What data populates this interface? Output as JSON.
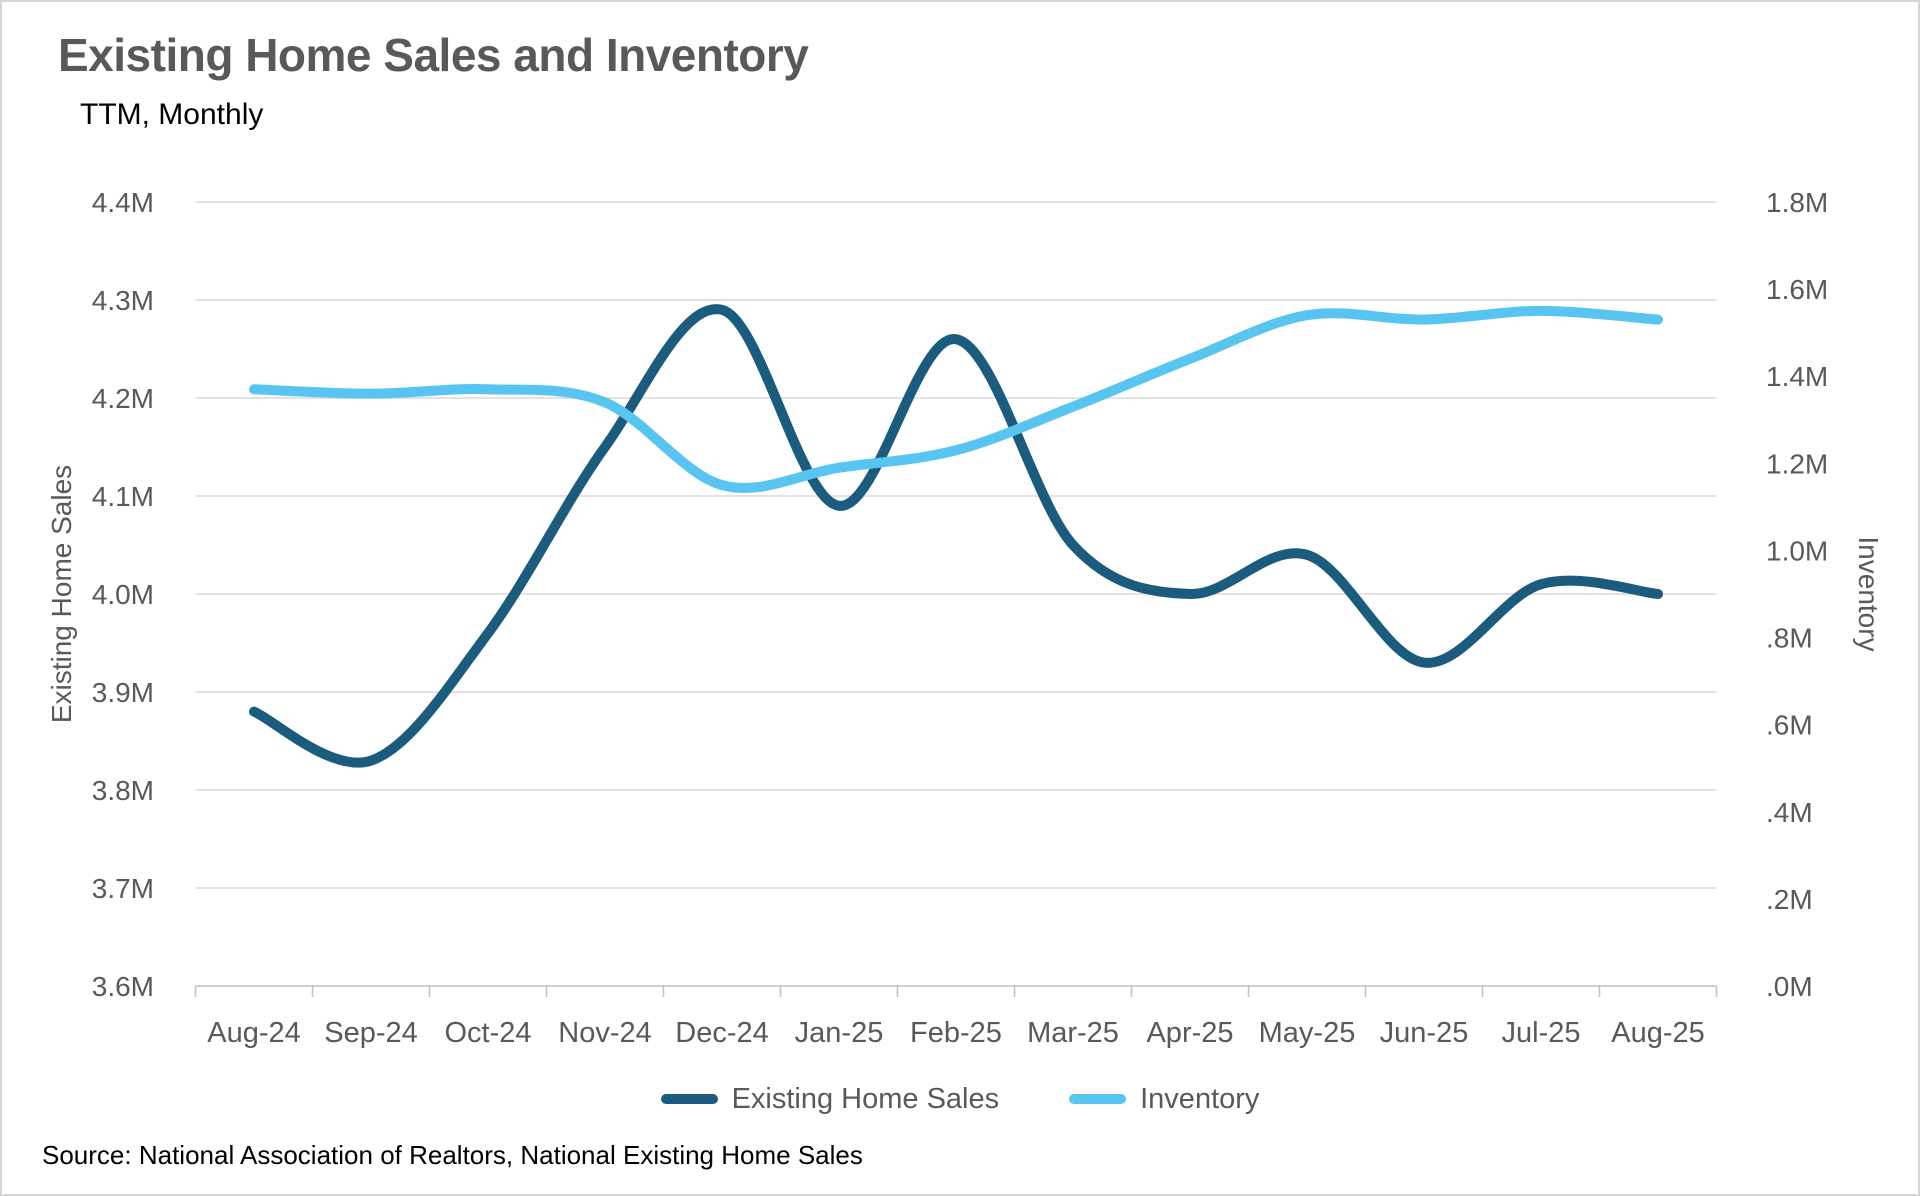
{
  "header": {
    "title": "Existing Home Sales and Inventory",
    "subtitle": "TTM, Monthly"
  },
  "source_note": "Source: National Association of Realtors, National Existing Home Sales",
  "colors": {
    "sales_line": "#1B5B7E",
    "inventory_line": "#58C5F0",
    "gridline": "#D9D9D9",
    "axis_line": "#BFBFBF",
    "tick_text": "#595959",
    "title_text": "#595959",
    "body_text": "#000000",
    "background": "#FFFFFF"
  },
  "chart_data": {
    "type": "line",
    "categories": [
      "Aug-24",
      "Sep-24",
      "Oct-24",
      "Nov-24",
      "Dec-24",
      "Jan-25",
      "Feb-25",
      "Mar-25",
      "Apr-25",
      "May-25",
      "Jun-25",
      "Jul-25",
      "Aug-25"
    ],
    "series": [
      {
        "name": "Existing Home Sales",
        "axis": "left",
        "color": "#1B5B7E",
        "values": [
          3.88,
          3.83,
          3.96,
          4.15,
          4.29,
          4.09,
          4.26,
          4.05,
          4.0,
          4.04,
          3.93,
          4.01,
          4.0
        ]
      },
      {
        "name": "Inventory",
        "axis": "right",
        "color": "#58C5F0",
        "values": [
          1.37,
          1.36,
          1.37,
          1.34,
          1.15,
          1.19,
          1.23,
          1.33,
          1.44,
          1.54,
          1.53,
          1.55,
          1.53
        ]
      }
    ],
    "left_axis": {
      "title": "Existing Home Sales",
      "min": 3.6,
      "max": 4.4,
      "tick_labels": [
        "4.4M",
        "4.3M",
        "4.2M",
        "4.1M",
        "4.0M",
        "3.9M",
        "3.8M",
        "3.7M",
        "3.6M"
      ]
    },
    "right_axis": {
      "title": "Inventory",
      "min": 0.0,
      "max": 1.8,
      "tick_labels": [
        "1.8M",
        "1.6M",
        "1.4M",
        "1.2M",
        "1.0M",
        ".8M",
        ".6M",
        ".4M",
        ".2M",
        ".0M"
      ]
    },
    "grid": "horizontal",
    "legend_position": "bottom",
    "line_style": "smooth"
  }
}
